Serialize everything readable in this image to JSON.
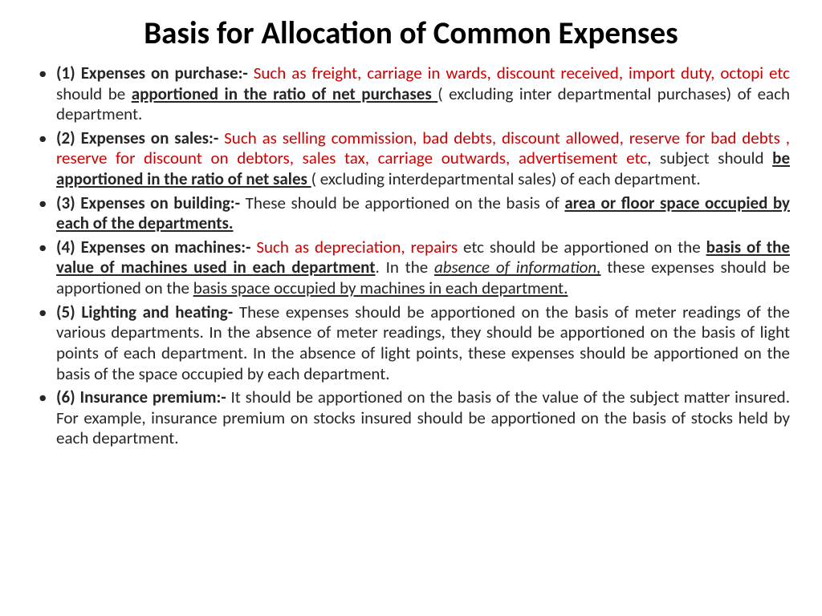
{
  "title": "Basis for Allocation of Common Expenses",
  "colors": {
    "text": "#262626",
    "highlight": "#cc0000",
    "background": "#ffffff",
    "title": "#000000"
  },
  "typography": {
    "title_fontsize": 39,
    "body_fontsize": 21,
    "font_family": "Calibri"
  },
  "items": [
    {
      "num": "(1) ",
      "label": "Expenses on purchase:- ",
      "red1": "Such as freight, carriage in wards, discount received, import duty, octopi etc ",
      "t1": "should be ",
      "bu1": "apportioned in the ratio of net purchases ",
      "t2": "( excluding inter departmental purchases) of each department."
    },
    {
      "num": "(2) ",
      "label": "Expenses on sales:- ",
      "red1": "Such as selling commission, bad debts, discount allowed, reserve for bad debts , reserve for discount on debtors, sales tax, carriage outwards, advertisement etc",
      "t1": ", subject should ",
      "bu1": "be apportioned in the ratio of net sales ",
      "t2": "( excluding interdepartmental sales) of each department."
    },
    {
      "num": "(3) ",
      "label": "Expenses on building:- ",
      "t1": "These should be apportioned on the basis of ",
      "bu1": "area or floor space occupied by each of the departments."
    },
    {
      "num": "(4) ",
      "label": "Expenses on machines:- ",
      "red1": "Such as depreciation, repairs ",
      "t1": "etc should be apportioned on the   ",
      "bu1": "basis of the value of machines used in each department",
      "t2": ". In the ",
      "iu1": "absence of information,",
      "t3": " these expenses should be apportioned on the ",
      "u2": "basis space occupied by machines in each department."
    },
    {
      "num": "(5) ",
      "label": "Lighting and heating- ",
      "t1": "These expenses should be apportioned on the basis of meter readings of the various departments. In the absence of meter readings, they should be apportioned on the basis of light points of each department. In the absence of light points, these expenses should be apportioned on the basis of the space occupied by each department."
    },
    {
      "num": "(6) ",
      "label": "Insurance premium:- ",
      "t1": "It should be apportioned on the basis of the value of the subject matter insured. For example, insurance premium on stocks insured should be apportioned  on the basis of stocks held by each department."
    }
  ]
}
